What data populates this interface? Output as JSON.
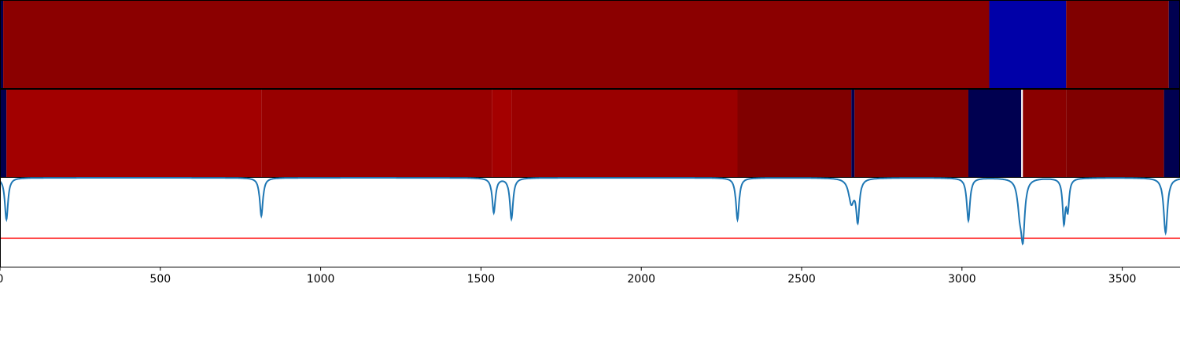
{
  "chart_data": [
    {
      "type": "heatmap",
      "name": "",
      "xlim": [
        0,
        3680
      ],
      "segments": [
        {
          "start": 0,
          "end": 10,
          "color": "#00004f"
        },
        {
          "start": 10,
          "end": 3085,
          "color": "#8b0000"
        },
        {
          "start": 3085,
          "end": 3325,
          "color": "#0000a8"
        },
        {
          "start": 3325,
          "end": 3645,
          "color": "#800000"
        },
        {
          "start": 3645,
          "end": 3680,
          "color": "#000050"
        }
      ]
    },
    {
      "type": "heatmap",
      "name": "",
      "xlim": [
        0,
        3680
      ],
      "segments": [
        {
          "start": 0,
          "end": 20,
          "color": "#00004f"
        },
        {
          "start": 20,
          "end": 815,
          "color": "#a20000"
        },
        {
          "start": 815,
          "end": 1535,
          "color": "#980000"
        },
        {
          "start": 1535,
          "end": 1595,
          "color": "#a40000"
        },
        {
          "start": 1595,
          "end": 2300,
          "color": "#9a0000"
        },
        {
          "start": 2300,
          "end": 2655,
          "color": "#800000"
        },
        {
          "start": 2655,
          "end": 2665,
          "color": "#000050"
        },
        {
          "start": 2665,
          "end": 3020,
          "color": "#820000"
        },
        {
          "start": 3020,
          "end": 3185,
          "color": "#000050"
        },
        {
          "start": 3185,
          "end": 3190,
          "color": "#ffffff"
        },
        {
          "start": 3190,
          "end": 3325,
          "color": "#8a0000"
        },
        {
          "start": 3325,
          "end": 3630,
          "color": "#800000"
        },
        {
          "start": 3630,
          "end": 3680,
          "color": "#000050"
        }
      ]
    },
    {
      "type": "line",
      "xlim": [
        0,
        3680
      ],
      "ylim": [
        -1.0,
        0.0
      ],
      "xticks": [
        0,
        500,
        1000,
        1500,
        2000,
        2500,
        3000,
        3500
      ],
      "threshold": {
        "y": -0.68,
        "color": "#ff0000"
      },
      "line_color": "#1f77b4",
      "dips": [
        {
          "center": 20,
          "depth": 0.47,
          "width": 6
        },
        {
          "center": 815,
          "depth": 0.43,
          "width": 6
        },
        {
          "center": 1540,
          "depth": 0.39,
          "width": 6
        },
        {
          "center": 1595,
          "depth": 0.46,
          "width": 6
        },
        {
          "center": 2300,
          "depth": 0.47,
          "width": 6
        },
        {
          "center": 2655,
          "depth": 0.27,
          "width": 10
        },
        {
          "center": 2675,
          "depth": 0.46,
          "width": 6
        },
        {
          "center": 3020,
          "depth": 0.48,
          "width": 6
        },
        {
          "center": 3180,
          "depth": 0.3,
          "width": 8
        },
        {
          "center": 3190,
          "depth": 0.62,
          "width": 7
        },
        {
          "center": 3318,
          "depth": 0.48,
          "width": 5
        },
        {
          "center": 3330,
          "depth": 0.33,
          "width": 5
        },
        {
          "center": 3635,
          "depth": 0.62,
          "width": 7
        }
      ]
    }
  ]
}
